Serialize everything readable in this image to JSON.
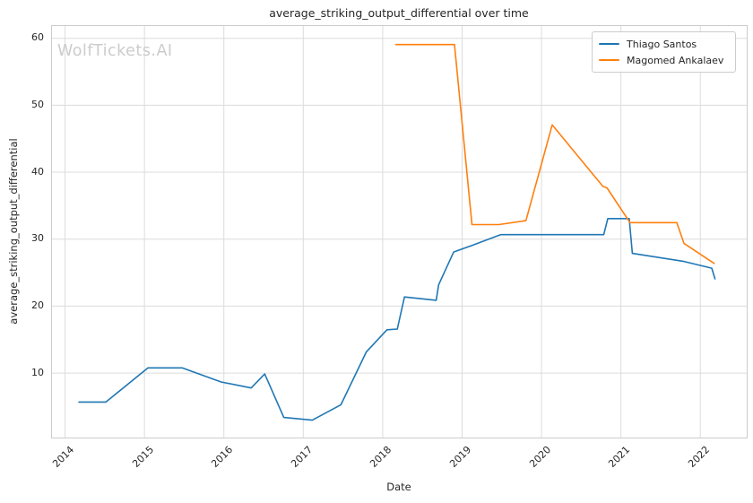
{
  "watermark": "WolfTickets.AI",
  "colors": {
    "grid": "#dcdcdc",
    "spine": "#cccccc",
    "text": "#262626",
    "watermark": "#cccccc",
    "background": "#ffffff"
  },
  "chart_data": {
    "type": "line",
    "title": "average_striking_output_differential over time",
    "xlabel": "Date",
    "ylabel": "average_striking_output_differential",
    "grid": true,
    "legend_position": "upper right",
    "x_ticks": [
      2014,
      2015,
      2016,
      2017,
      2018,
      2019,
      2020,
      2021,
      2022
    ],
    "y_ticks": [
      10,
      20,
      30,
      40,
      50,
      60
    ],
    "xlim": [
      2013.83,
      2022.59
    ],
    "ylim": [
      0.3,
      61.9
    ],
    "series": [
      {
        "name": "Thiago Santos",
        "color": "#1f77b4",
        "points": [
          [
            2014.18,
            5.6
          ],
          [
            2014.52,
            5.6
          ],
          [
            2015.05,
            10.7
          ],
          [
            2015.48,
            10.7
          ],
          [
            2015.97,
            8.6
          ],
          [
            2016.35,
            7.7
          ],
          [
            2016.52,
            9.8
          ],
          [
            2016.76,
            3.3
          ],
          [
            2017.12,
            2.9
          ],
          [
            2017.48,
            5.2
          ],
          [
            2017.8,
            13.1
          ],
          [
            2018.06,
            16.4
          ],
          [
            2018.19,
            16.5
          ],
          [
            2018.28,
            21.3
          ],
          [
            2018.68,
            20.8
          ],
          [
            2018.71,
            23.1
          ],
          [
            2018.9,
            28.0
          ],
          [
            2019.13,
            29.0
          ],
          [
            2019.49,
            30.6
          ],
          [
            2020.79,
            30.6
          ],
          [
            2020.84,
            33.0
          ],
          [
            2021.11,
            33.0
          ],
          [
            2021.15,
            27.8
          ],
          [
            2021.8,
            26.6
          ],
          [
            2022.15,
            25.6
          ],
          [
            2022.19,
            24.0
          ]
        ]
      },
      {
        "name": "Magomed Ankalaev",
        "color": "#ff7f0e",
        "points": [
          [
            2018.17,
            59.0
          ],
          [
            2018.91,
            59.0
          ],
          [
            2019.13,
            32.1
          ],
          [
            2019.47,
            32.1
          ],
          [
            2019.81,
            32.7
          ],
          [
            2020.14,
            47.0
          ],
          [
            2020.78,
            37.8
          ],
          [
            2020.83,
            37.6
          ],
          [
            2021.12,
            32.4
          ],
          [
            2021.71,
            32.4
          ],
          [
            2021.8,
            29.3
          ],
          [
            2022.18,
            26.3
          ]
        ]
      }
    ]
  }
}
